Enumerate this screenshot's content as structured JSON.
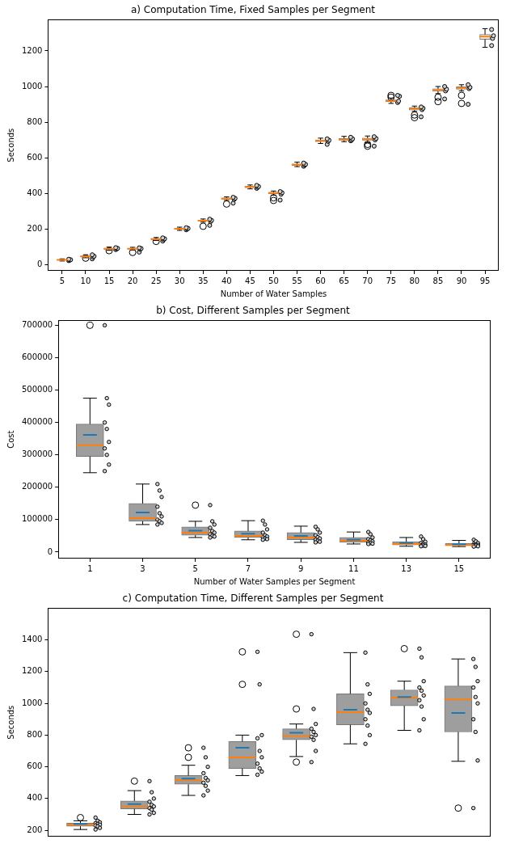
{
  "chart_data": [
    {
      "type": "box",
      "title": "a) Computation Time, Fixed Samples per Segment",
      "x_label": "Number of Water Samples",
      "y_label": "Seconds",
      "categories": [
        5,
        10,
        15,
        20,
        25,
        30,
        35,
        40,
        45,
        50,
        55,
        60,
        65,
        70,
        75,
        80,
        85,
        90,
        95
      ],
      "color": "#f0f0f0",
      "grid": false,
      "ylim": [
        -35,
        1375
      ],
      "yticks": [
        0,
        200,
        400,
        600,
        800,
        1000,
        1200
      ],
      "boxes": [
        {
          "min": 20,
          "q1": 24,
          "median": 26,
          "q3": 28,
          "max": 32,
          "outliers": [],
          "points": [
            22,
            25,
            27,
            30
          ]
        },
        {
          "min": 38,
          "q1": 44,
          "median": 46,
          "q3": 49,
          "max": 55,
          "outliers": [
            36
          ],
          "points": [
            32,
            42,
            47,
            55
          ]
        },
        {
          "min": 80,
          "q1": 86,
          "median": 89,
          "q3": 92,
          "max": 98,
          "outliers": [
            78
          ],
          "points": [
            84,
            88,
            91,
            95
          ]
        },
        {
          "min": 82,
          "q1": 87,
          "median": 89,
          "q3": 92,
          "max": 97,
          "outliers": [
            68
          ],
          "points": [
            70,
            86,
            90,
            94
          ]
        },
        {
          "min": 135,
          "q1": 140,
          "median": 143,
          "q3": 146,
          "max": 152,
          "outliers": [
            130
          ],
          "points": [
            132,
            140,
            145,
            150
          ]
        },
        {
          "min": 192,
          "q1": 198,
          "median": 201,
          "q3": 204,
          "max": 210,
          "outliers": [],
          "points": [
            195,
            200,
            203,
            207
          ]
        },
        {
          "min": 238,
          "q1": 244,
          "median": 247,
          "q3": 250,
          "max": 256,
          "outliers": [
            215
          ],
          "points": [
            220,
            242,
            248,
            255
          ]
        },
        {
          "min": 360,
          "q1": 367,
          "median": 370,
          "q3": 374,
          "max": 380,
          "outliers": [
            340
          ],
          "points": [
            345,
            366,
            372,
            378
          ]
        },
        {
          "min": 425,
          "q1": 432,
          "median": 436,
          "q3": 440,
          "max": 447,
          "outliers": [],
          "points": [
            428,
            434,
            438,
            445
          ]
        },
        {
          "min": 390,
          "q1": 398,
          "median": 402,
          "q3": 406,
          "max": 413,
          "outliers": [
            360,
            375
          ],
          "points": [
            362,
            395,
            403,
            410
          ]
        },
        {
          "min": 550,
          "q1": 557,
          "median": 561,
          "q3": 565,
          "max": 575,
          "outliers": [],
          "points": [
            552,
            558,
            563,
            570
          ]
        },
        {
          "min": 680,
          "q1": 690,
          "median": 695,
          "q3": 700,
          "max": 710,
          "outliers": [],
          "points": [
            675,
            692,
            698,
            706
          ]
        },
        {
          "min": 690,
          "q1": 698,
          "median": 703,
          "q3": 708,
          "max": 720,
          "outliers": [],
          "points": [
            695,
            700,
            706,
            715
          ]
        },
        {
          "min": 685,
          "q1": 698,
          "median": 704,
          "q3": 710,
          "max": 722,
          "outliers": [
            665,
            675
          ],
          "points": [
            665,
            700,
            708,
            718
          ]
        },
        {
          "min": 905,
          "q1": 915,
          "median": 920,
          "q3": 925,
          "max": 935,
          "outliers": [
            940,
            950
          ],
          "points": [
            910,
            918,
            945,
            950
          ]
        },
        {
          "min": 860,
          "q1": 868,
          "median": 875,
          "q3": 880,
          "max": 890,
          "outliers": [
            825,
            840
          ],
          "points": [
            830,
            870,
            878,
            885
          ]
        },
        {
          "min": 960,
          "q1": 973,
          "median": 980,
          "q3": 987,
          "max": 1000,
          "outliers": [
            915,
            940
          ],
          "points": [
            930,
            975,
            985,
            1000
          ]
        },
        {
          "min": 975,
          "q1": 985,
          "median": 992,
          "q3": 998,
          "max": 1010,
          "outliers": [
            905,
            950
          ],
          "points": [
            900,
            988,
            995,
            1010
          ]
        },
        {
          "min": 1220,
          "q1": 1265,
          "median": 1280,
          "q3": 1292,
          "max": 1325,
          "outliers": [],
          "points": [
            1230,
            1270,
            1285,
            1320
          ]
        }
      ]
    },
    {
      "type": "box",
      "title": "b) Cost, Different Samples per Segment",
      "x_label": "Number of Water Samples per Segment",
      "y_label": "Cost",
      "categories": [
        1,
        3,
        5,
        7,
        9,
        11,
        13,
        15
      ],
      "color": "#9e9e9e",
      "grid": false,
      "ylim": [
        -20000,
        715000
      ],
      "yticks": [
        0,
        100000,
        200000,
        300000,
        400000,
        500000,
        600000,
        700000
      ],
      "boxes": [
        {
          "min": 245000,
          "q1": 295000,
          "median": 330000,
          "q3": 395000,
          "max": 475000,
          "mean": 362000,
          "outliers": [
            700000
          ],
          "points": [
            700000,
            475000,
            455000,
            400000,
            380000,
            340000,
            320000,
            300000,
            270000,
            250000
          ]
        },
        {
          "min": 85000,
          "q1": 95000,
          "median": 105000,
          "q3": 150000,
          "max": 210000,
          "mean": 122000,
          "outliers": [],
          "points": [
            210000,
            190000,
            170000,
            140000,
            120000,
            110000,
            100000,
            95000,
            90000,
            85000
          ]
        },
        {
          "min": 45000,
          "q1": 52000,
          "median": 60000,
          "q3": 78000,
          "max": 95000,
          "mean": 66000,
          "outliers": [
            145000
          ],
          "points": [
            145000,
            95000,
            85000,
            75000,
            65000,
            60000,
            55000,
            50000,
            48000,
            45000
          ]
        },
        {
          "min": 38000,
          "q1": 45000,
          "median": 50000,
          "q3": 65000,
          "max": 97000,
          "mean": 57000,
          "outliers": [],
          "points": [
            97000,
            85000,
            70000,
            60000,
            52000,
            48000,
            45000,
            42000,
            40000,
            38000
          ]
        },
        {
          "min": 30000,
          "q1": 38000,
          "median": 45000,
          "q3": 60000,
          "max": 80000,
          "mean": 50000,
          "outliers": [],
          "points": [
            78000,
            70000,
            60000,
            52000,
            46000,
            42000,
            38000,
            35000,
            32000,
            30000
          ]
        },
        {
          "min": 25000,
          "q1": 30000,
          "median": 35000,
          "q3": 45000,
          "max": 62000,
          "mean": 38000,
          "outliers": [],
          "points": [
            62000,
            55000,
            45000,
            40000,
            36000,
            33000,
            30000,
            28000,
            26000,
            25000
          ]
        },
        {
          "min": 18000,
          "q1": 22000,
          "median": 25000,
          "q3": 32000,
          "max": 45000,
          "mean": 28000,
          "outliers": [],
          "points": [
            48000,
            40000,
            32000,
            28000,
            25000,
            23000,
            21000,
            20000,
            19000,
            18000
          ]
        },
        {
          "min": 17000,
          "q1": 20000,
          "median": 22000,
          "q3": 27000,
          "max": 36000,
          "mean": 24000,
          "outliers": [],
          "points": [
            38000,
            33000,
            28000,
            25000,
            23000,
            22000,
            21000,
            20000,
            18000,
            17000
          ]
        }
      ]
    },
    {
      "type": "box",
      "title": "c) Computation Time, Different Samples per Segment",
      "y_label": "Seconds",
      "categories": [
        null,
        null,
        null,
        null,
        null,
        null,
        null,
        null
      ],
      "tick_labels": "y",
      "color": "#9e9e9e",
      "grid": false,
      "ylim": [
        160,
        1600
      ],
      "yticks": [
        200,
        400,
        600,
        800,
        1000,
        1200,
        1400
      ],
      "boxes": [
        {
          "min": 205,
          "q1": 225,
          "median": 235,
          "q3": 245,
          "max": 260,
          "mean": 240,
          "outliers": [
            280
          ],
          "points": [
            280,
            260,
            250,
            245,
            240,
            235,
            230,
            225,
            215,
            205
          ]
        },
        {
          "min": 300,
          "q1": 335,
          "median": 350,
          "q3": 385,
          "max": 450,
          "mean": 365,
          "outliers": [
            510
          ],
          "points": [
            510,
            440,
            400,
            380,
            360,
            350,
            340,
            330,
            310,
            300
          ]
        },
        {
          "min": 420,
          "q1": 490,
          "median": 515,
          "q3": 545,
          "max": 610,
          "mean": 525,
          "outliers": [
            660,
            720
          ],
          "points": [
            720,
            660,
            600,
            560,
            530,
            515,
            500,
            480,
            450,
            420
          ]
        },
        {
          "min": 545,
          "q1": 590,
          "median": 660,
          "q3": 760,
          "max": 800,
          "mean": 720,
          "outliers": [
            1120,
            1325
          ],
          "points": [
            1325,
            1120,
            800,
            780,
            700,
            660,
            620,
            590,
            570,
            550
          ]
        },
        {
          "min": 665,
          "q1": 770,
          "median": 795,
          "q3": 840,
          "max": 870,
          "mean": 815,
          "outliers": [
            630,
            965,
            1436
          ],
          "points": [
            1436,
            965,
            870,
            840,
            820,
            800,
            790,
            770,
            700,
            630
          ]
        },
        {
          "min": 745,
          "q1": 865,
          "median": 945,
          "q3": 1060,
          "max": 1320,
          "mean": 960,
          "outliers": [],
          "points": [
            1320,
            1120,
            1060,
            1000,
            960,
            940,
            900,
            860,
            800,
            745
          ]
        },
        {
          "min": 830,
          "q1": 985,
          "median": 1035,
          "q3": 1085,
          "max": 1140,
          "mean": 1040,
          "outliers": [
            1345
          ],
          "points": [
            1345,
            1290,
            1140,
            1100,
            1080,
            1050,
            1020,
            980,
            900,
            830
          ]
        },
        {
          "min": 635,
          "q1": 820,
          "median": 1025,
          "q3": 1110,
          "max": 1280,
          "mean": 940,
          "outliers": [
            340
          ],
          "points": [
            1280,
            1230,
            1140,
            1100,
            1040,
            1000,
            900,
            820,
            640,
            340
          ]
        }
      ]
    }
  ]
}
